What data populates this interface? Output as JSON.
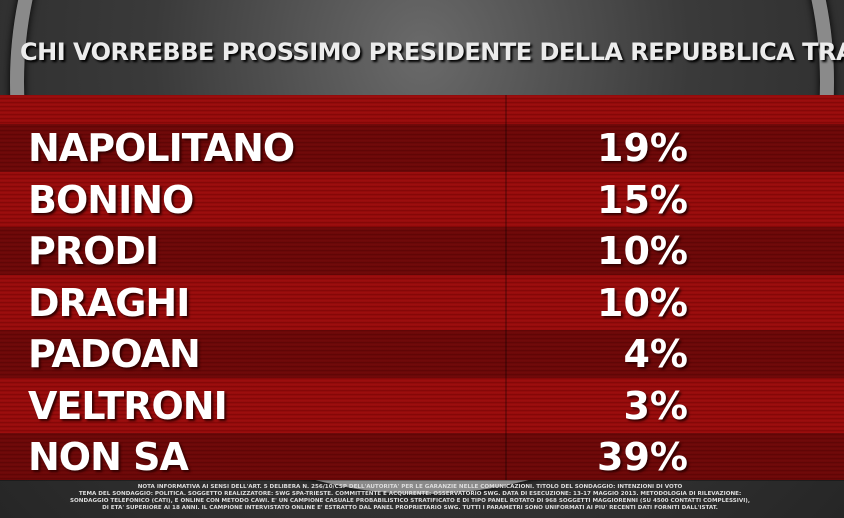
{
  "header": {
    "title": "CHI VORREBBE PROSSIMO PRESIDENTE DELLA REPUBBLICA TRA..."
  },
  "table": {
    "rows": [
      [
        "NAPOLITANO",
        "19%"
      ],
      [
        "BONINO",
        "15%"
      ],
      [
        "PRODI",
        "10%"
      ],
      [
        "DRAGHI",
        "10%"
      ],
      [
        "PADOAN",
        "4%"
      ],
      [
        "VELTRONI",
        "3%"
      ],
      [
        "NON SA",
        "39%"
      ]
    ]
  },
  "footnote": [
    "NOTA INFORMATIVA AI SENSI DELL'ART. 5 DELIBERA N. 256/10/CSP DELL'AUTORITA' PER LE GARANZIE NELLE COMUNICAZIONI. TITOLO DEL SONDAGGIO: INTENZIONI DI VOTO",
    "TEMA DEL SONDAGGIO: POLITICA. SOGGETTO REALIZZATORE: SWG SPA-TRIESTE. COMMITTENTE E ACQUIRENTE: OSSERVATORIO SWG. DATA DI ESECUZIONE: 13-17 MAGGIO 2013. METODOLOGIA DI RILEVAZIONE:",
    "SONDAGGIO TELEFONICO (CATI), E ONLINE CON METODO CAWI. E' UN CAMPIONE CASUALE PROBABILISTICO STRATIFICATO E DI TIPO PANEL ROTATO DI 968 SOGGETTI MAGGIORENNI (SU 4500 CONTATTI COMPLESSIVI),",
    "DI ETA' SUPERIORE AI 18 ANNI. IL CAMPIONE INTERVISTATO ONLINE E' ESTRATTO DAL PANEL PROPRIETARIO SWG. TUTTI I PARAMETRI SONO UNIFORMATI AI PIU' RECENTI DATI FORNITI DALL'ISTAT."
  ]
}
